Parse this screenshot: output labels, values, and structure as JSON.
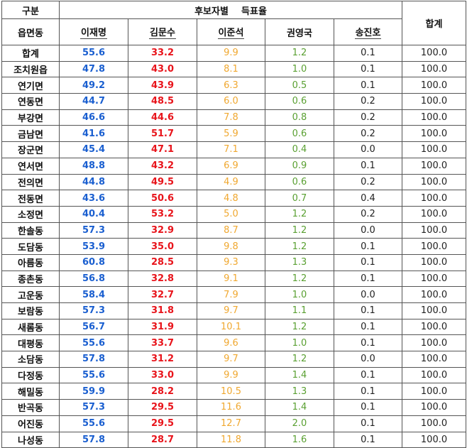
{
  "header": {
    "group_label": "구분",
    "candidates_label": "후보자별    득표율",
    "total_label": "합계",
    "region_label": "읍면동",
    "candidates": [
      "이재명",
      "김문수",
      "이준석",
      "권영국",
      "송진호"
    ]
  },
  "colors": {
    "lee_jaemyung": "#1a5fd0",
    "kim_moonsoo": "#e8141b",
    "lee_junseok": "#f0a830",
    "kwon_youngguk": "#5aa032",
    "song_jinho": "#222222"
  },
  "rows": [
    {
      "region": "합계",
      "v": [
        "55.6",
        "33.2",
        "9.9",
        "1.2",
        "0.1",
        "100.0"
      ]
    },
    {
      "region": "조치원읍",
      "v": [
        "47.8",
        "43.0",
        "8.1",
        "1.0",
        "0.1",
        "100.0"
      ]
    },
    {
      "region": "연기면",
      "v": [
        "49.2",
        "43.9",
        "6.3",
        "0.5",
        "0.1",
        "100.0"
      ]
    },
    {
      "region": "연동면",
      "v": [
        "44.7",
        "48.5",
        "6.0",
        "0.6",
        "0.2",
        "100.0"
      ]
    },
    {
      "region": "부강면",
      "v": [
        "46.6",
        "44.6",
        "7.8",
        "0.8",
        "0.2",
        "100.0"
      ]
    },
    {
      "region": "금남면",
      "v": [
        "41.6",
        "51.7",
        "5.9",
        "0.6",
        "0.2",
        "100.0"
      ]
    },
    {
      "region": "장군면",
      "v": [
        "45.4",
        "47.1",
        "7.1",
        "0.4",
        "0.0",
        "100.0"
      ]
    },
    {
      "region": "연서면",
      "v": [
        "48.8",
        "43.2",
        "6.9",
        "0.9",
        "0.1",
        "100.0"
      ]
    },
    {
      "region": "전의면",
      "v": [
        "44.8",
        "49.5",
        "4.9",
        "0.6",
        "0.2",
        "100.0"
      ]
    },
    {
      "region": "전동면",
      "v": [
        "43.6",
        "50.6",
        "4.8",
        "0.7",
        "0.4",
        "100.0"
      ]
    },
    {
      "region": "소정면",
      "v": [
        "40.4",
        "53.2",
        "5.0",
        "1.2",
        "0.2",
        "100.0"
      ]
    },
    {
      "region": "한솔동",
      "v": [
        "57.3",
        "32.9",
        "8.7",
        "1.2",
        "0.0",
        "100.0"
      ]
    },
    {
      "region": "도담동",
      "v": [
        "53.9",
        "35.0",
        "9.8",
        "1.2",
        "0.1",
        "100.0"
      ]
    },
    {
      "region": "아름동",
      "v": [
        "60.8",
        "28.5",
        "9.3",
        "1.3",
        "0.1",
        "100.0"
      ]
    },
    {
      "region": "종촌동",
      "v": [
        "56.8",
        "32.8",
        "9.1",
        "1.2",
        "0.1",
        "100.0"
      ]
    },
    {
      "region": "고운동",
      "v": [
        "58.4",
        "32.7",
        "7.9",
        "1.0",
        "0.0",
        "100.0"
      ]
    },
    {
      "region": "보람동",
      "v": [
        "57.3",
        "31.8",
        "9.7",
        "1.1",
        "0.1",
        "100.0"
      ]
    },
    {
      "region": "새롬동",
      "v": [
        "56.7",
        "31.9",
        "10.1",
        "1.2",
        "0.1",
        "100.0"
      ]
    },
    {
      "region": "대평동",
      "v": [
        "55.6",
        "33.7",
        "9.6",
        "1.0",
        "0.1",
        "100.0"
      ]
    },
    {
      "region": "소담동",
      "v": [
        "57.8",
        "31.2",
        "9.7",
        "1.2",
        "0.0",
        "100.0"
      ]
    },
    {
      "region": "다정동",
      "v": [
        "55.6",
        "33.0",
        "9.9",
        "1.4",
        "0.1",
        "100.0"
      ]
    },
    {
      "region": "해밀동",
      "v": [
        "59.9",
        "28.2",
        "10.5",
        "1.3",
        "0.1",
        "100.0"
      ]
    },
    {
      "region": "반곡동",
      "v": [
        "57.3",
        "29.5",
        "11.6",
        "1.4",
        "0.1",
        "100.0"
      ]
    },
    {
      "region": "어진동",
      "v": [
        "55.6",
        "29.5",
        "12.7",
        "2.0",
        "0.1",
        "100.0"
      ]
    },
    {
      "region": "나성동",
      "v": [
        "57.8",
        "28.7",
        "11.8",
        "1.6",
        "0.1",
        "100.0"
      ]
    }
  ]
}
